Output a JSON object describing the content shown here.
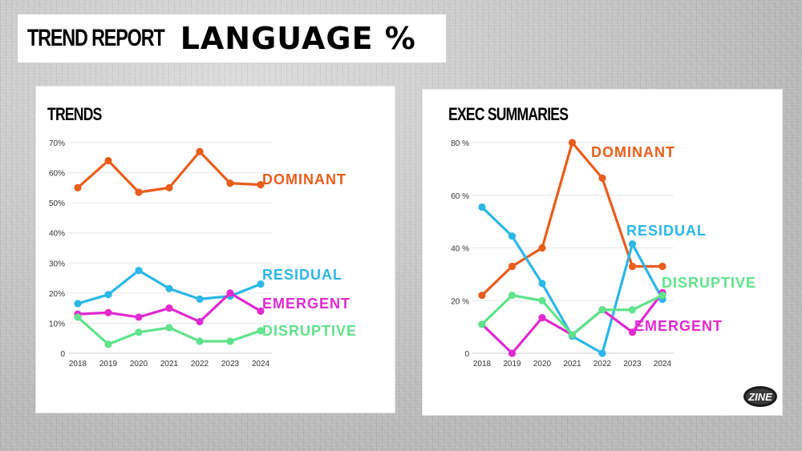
{
  "header": {
    "title_part1": "TREND REPORT",
    "title_part2": "LANGUAGE %"
  },
  "colors": {
    "dominant": "#e85d1c",
    "residual": "#2bb7e8",
    "emergent": "#e02ad0",
    "disruptive": "#5fe38b"
  },
  "logo": {
    "text": "ZINE"
  },
  "chart_data": [
    {
      "type": "line",
      "title": "TRENDS",
      "x": [
        "2018",
        "2019",
        "2020",
        "2021",
        "2022",
        "2023",
        "2024"
      ],
      "yticks": [
        "0",
        "10%",
        "20%",
        "30%",
        "40%",
        "50%",
        "60%",
        "70%"
      ],
      "ylim": [
        0,
        70
      ],
      "grid": true,
      "series": [
        {
          "name": "DOMINANT",
          "color": "dominant",
          "values": [
            55,
            64,
            53.5,
            55,
            67,
            56.5,
            56
          ]
        },
        {
          "name": "RESIDUAL",
          "color": "residual",
          "values": [
            16.5,
            19.5,
            27.5,
            21.5,
            18,
            19,
            23
          ]
        },
        {
          "name": "EMERGENT",
          "color": "emergent",
          "values": [
            13,
            13.5,
            12,
            15,
            10.5,
            20,
            14
          ]
        },
        {
          "name": "DISRUPTIVE",
          "color": "disruptive",
          "values": [
            12,
            3,
            7,
            8.5,
            4,
            4,
            7.5
          ]
        }
      ]
    },
    {
      "type": "line",
      "title": "EXEC SUMMARIES",
      "x": [
        "2018",
        "2019",
        "2020",
        "2021",
        "2022",
        "2023",
        "2024"
      ],
      "yticks": [
        "0",
        "20 %",
        "40 %",
        "60 %",
        "80 %"
      ],
      "ylim": [
        0,
        80
      ],
      "grid": true,
      "series": [
        {
          "name": "DOMINANT",
          "color": "dominant",
          "values": [
            22,
            33,
            40,
            80,
            66.5,
            33,
            33
          ]
        },
        {
          "name": "RESIDUAL",
          "color": "residual",
          "values": [
            55.5,
            44.5,
            26.5,
            6.5,
            0,
            41.5,
            20.5
          ]
        },
        {
          "name": "EMERGENT",
          "color": "emergent",
          "values": [
            11,
            0,
            13.5,
            7,
            16.5,
            8,
            23
          ]
        },
        {
          "name": "DISRUPTIVE",
          "color": "disruptive",
          "values": [
            11,
            22,
            20,
            7,
            16.5,
            16.5,
            22
          ]
        }
      ]
    }
  ]
}
